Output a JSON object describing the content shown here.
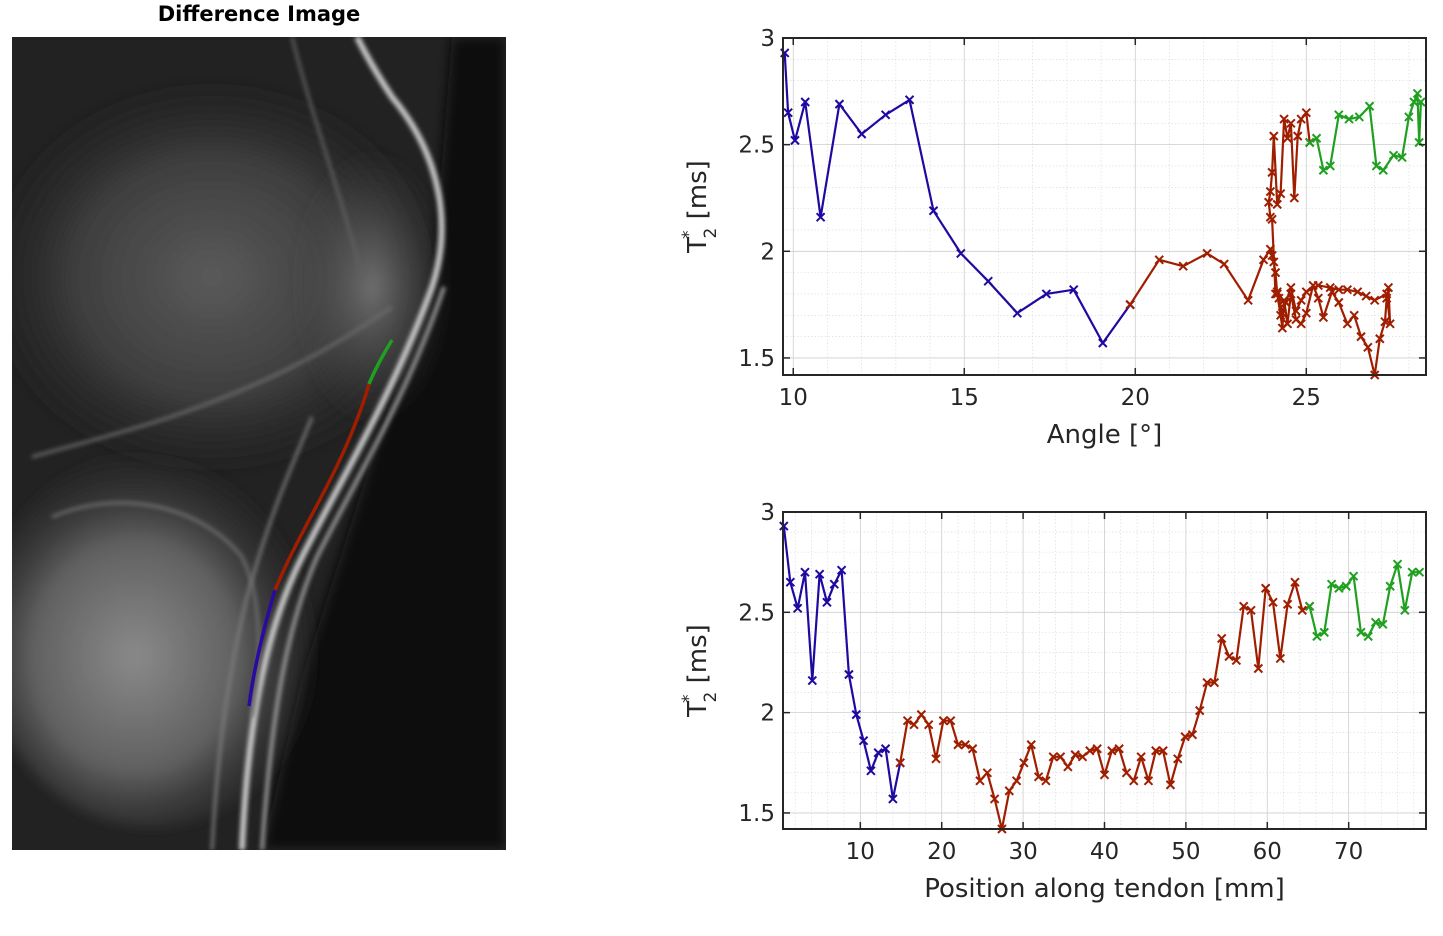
{
  "image_panel": {
    "title": "Difference Image",
    "overlay_colors": {
      "blue": "#2a0aa0",
      "red": "#a01e00",
      "green": "#20a020"
    }
  },
  "chart_data": [
    {
      "type": "line",
      "xlabel": "Angle [°]",
      "ylabel": "T*2 [ms]",
      "xlim": [
        9.7,
        28.5
      ],
      "ylim": [
        1.42,
        3.0
      ],
      "xticks": [
        10,
        15,
        20,
        25
      ],
      "yticks": [
        1.5,
        2,
        2.5,
        3
      ],
      "ytick_labels": [
        "1.5",
        "2",
        "2.5",
        "3"
      ],
      "grid": true,
      "marker": "x",
      "series": [
        {
          "color": "#1e0aa0",
          "x": [
            9.75,
            9.85,
            10.05,
            10.35,
            10.8,
            11.35,
            12.0,
            12.7,
            13.4,
            14.1,
            14.9,
            15.7,
            16.55,
            17.4,
            18.2,
            19.05,
            19.85
          ],
          "y": [
            2.93,
            2.65,
            2.52,
            2.7,
            2.16,
            2.69,
            2.55,
            2.64,
            2.71,
            2.19,
            1.99,
            1.86,
            1.71,
            1.8,
            1.82,
            1.57,
            1.75
          ]
        },
        {
          "color": "#a01e00",
          "x": [
            19.85,
            20.7,
            21.4,
            22.1,
            22.6,
            23.3,
            23.75,
            23.95,
            24.0,
            24.05,
            24.1,
            24.15,
            24.25,
            24.3,
            24.35,
            24.45,
            24.55,
            24.7,
            24.85,
            25.0,
            25.2,
            25.35,
            25.5,
            25.75,
            25.95,
            26.2,
            26.4,
            26.6,
            26.8,
            27.0,
            27.15,
            27.3,
            27.35,
            27.4,
            27.45,
            27.35,
            27.0,
            26.75,
            26.5,
            26.2,
            25.95,
            25.7,
            25.35,
            25.0,
            24.85,
            24.7,
            24.55,
            24.4,
            24.3,
            24.2,
            24.15,
            24.1,
            24.0,
            23.95,
            23.9,
            23.95,
            24.0,
            24.05,
            24.15,
            24.25,
            24.35,
            24.45,
            24.55,
            24.65,
            24.75,
            24.85,
            25.0,
            25.1
          ],
          "y": [
            1.75,
            1.96,
            1.93,
            1.99,
            1.94,
            1.77,
            1.96,
            2.01,
            1.98,
            1.95,
            1.9,
            1.8,
            1.7,
            1.64,
            1.77,
            1.66,
            1.8,
            1.68,
            1.66,
            1.71,
            1.84,
            1.78,
            1.69,
            1.81,
            1.76,
            1.66,
            1.7,
            1.6,
            1.55,
            1.42,
            1.59,
            1.67,
            1.78,
            1.83,
            1.66,
            1.8,
            1.77,
            1.79,
            1.81,
            1.82,
            1.82,
            1.83,
            1.84,
            1.81,
            1.77,
            1.72,
            1.83,
            1.76,
            1.71,
            1.78,
            1.81,
            1.8,
            2.15,
            2.16,
            2.23,
            2.28,
            2.37,
            2.54,
            2.22,
            2.27,
            2.62,
            2.53,
            2.6,
            2.25,
            2.54,
            2.62,
            2.65,
            2.51
          ]
        },
        {
          "color": "#20a020",
          "x": [
            25.1,
            25.3,
            25.5,
            25.7,
            25.95,
            26.25,
            26.55,
            26.85,
            27.05,
            27.25,
            27.55,
            27.8,
            28.0,
            28.15,
            28.25,
            28.3,
            28.35
          ],
          "y": [
            2.51,
            2.53,
            2.38,
            2.4,
            2.64,
            2.62,
            2.63,
            2.68,
            2.4,
            2.38,
            2.45,
            2.44,
            2.63,
            2.7,
            2.74,
            2.51,
            2.7
          ]
        }
      ]
    },
    {
      "type": "line",
      "xlabel": "Position along tendon [mm]",
      "ylabel": "T*2 [ms]",
      "xlim": [
        0.5,
        79.5
      ],
      "ylim": [
        1.42,
        3.0
      ],
      "xticks": [
        10,
        20,
        30,
        40,
        50,
        60,
        70
      ],
      "yticks": [
        1.5,
        2,
        2.5,
        3
      ],
      "ytick_labels": [
        "1.5",
        "2",
        "2.5",
        "3"
      ],
      "grid": true,
      "marker": "x",
      "series": [
        {
          "color": "#1e0aa0",
          "x": [
            0.6,
            1.4,
            2.3,
            3.2,
            4.1,
            5.0,
            5.9,
            6.8,
            7.7,
            8.6,
            9.5,
            10.4,
            11.3,
            12.2,
            13.1,
            14.0,
            14.9
          ],
          "y": [
            2.93,
            2.65,
            2.52,
            2.7,
            2.16,
            2.69,
            2.55,
            2.64,
            2.71,
            2.19,
            1.99,
            1.86,
            1.71,
            1.8,
            1.82,
            1.57,
            1.75
          ]
        },
        {
          "color": "#a01e00",
          "x": [
            14.9,
            15.8,
            16.6,
            17.5,
            18.4,
            19.3,
            20.2,
            21.1,
            22.0,
            22.9,
            23.8,
            24.7,
            25.6,
            26.5,
            27.4,
            28.3,
            29.2,
            30.1,
            31.0,
            31.9,
            32.8,
            33.7,
            34.6,
            35.5,
            36.4,
            37.3,
            38.2,
            39.1,
            40.0,
            40.9,
            41.8,
            42.7,
            43.6,
            44.5,
            45.4,
            46.3,
            47.2,
            48.1,
            49.0,
            49.9,
            50.8,
            51.7,
            52.6,
            53.5,
            54.4,
            55.3,
            56.2,
            57.1,
            58.0,
            58.9,
            59.8,
            60.7,
            61.6,
            62.5,
            63.4,
            64.3,
            65.2
          ],
          "y": [
            1.75,
            1.96,
            1.94,
            1.99,
            1.94,
            1.77,
            1.96,
            1.96,
            1.84,
            1.84,
            1.82,
            1.66,
            1.7,
            1.57,
            1.42,
            1.61,
            1.66,
            1.75,
            1.84,
            1.68,
            1.66,
            1.78,
            1.78,
            1.73,
            1.79,
            1.78,
            1.81,
            1.82,
            1.69,
            1.81,
            1.82,
            1.7,
            1.66,
            1.78,
            1.66,
            1.81,
            1.81,
            1.64,
            1.77,
            1.88,
            1.89,
            2.01,
            2.15,
            2.15,
            2.37,
            2.28,
            2.26,
            2.53,
            2.51,
            2.22,
            2.62,
            2.55,
            2.27,
            2.54,
            2.65,
            2.51,
            2.53
          ]
        },
        {
          "color": "#20a020",
          "x": [
            65.2,
            66.1,
            67.0,
            67.9,
            68.8,
            69.7,
            70.6,
            71.5,
            72.4,
            73.3,
            74.2,
            75.1,
            76.0,
            76.9,
            77.8,
            78.7
          ],
          "y": [
            2.53,
            2.38,
            2.4,
            2.64,
            2.62,
            2.63,
            2.68,
            2.4,
            2.38,
            2.45,
            2.44,
            2.63,
            2.74,
            2.51,
            2.7,
            2.7
          ]
        }
      ]
    }
  ]
}
